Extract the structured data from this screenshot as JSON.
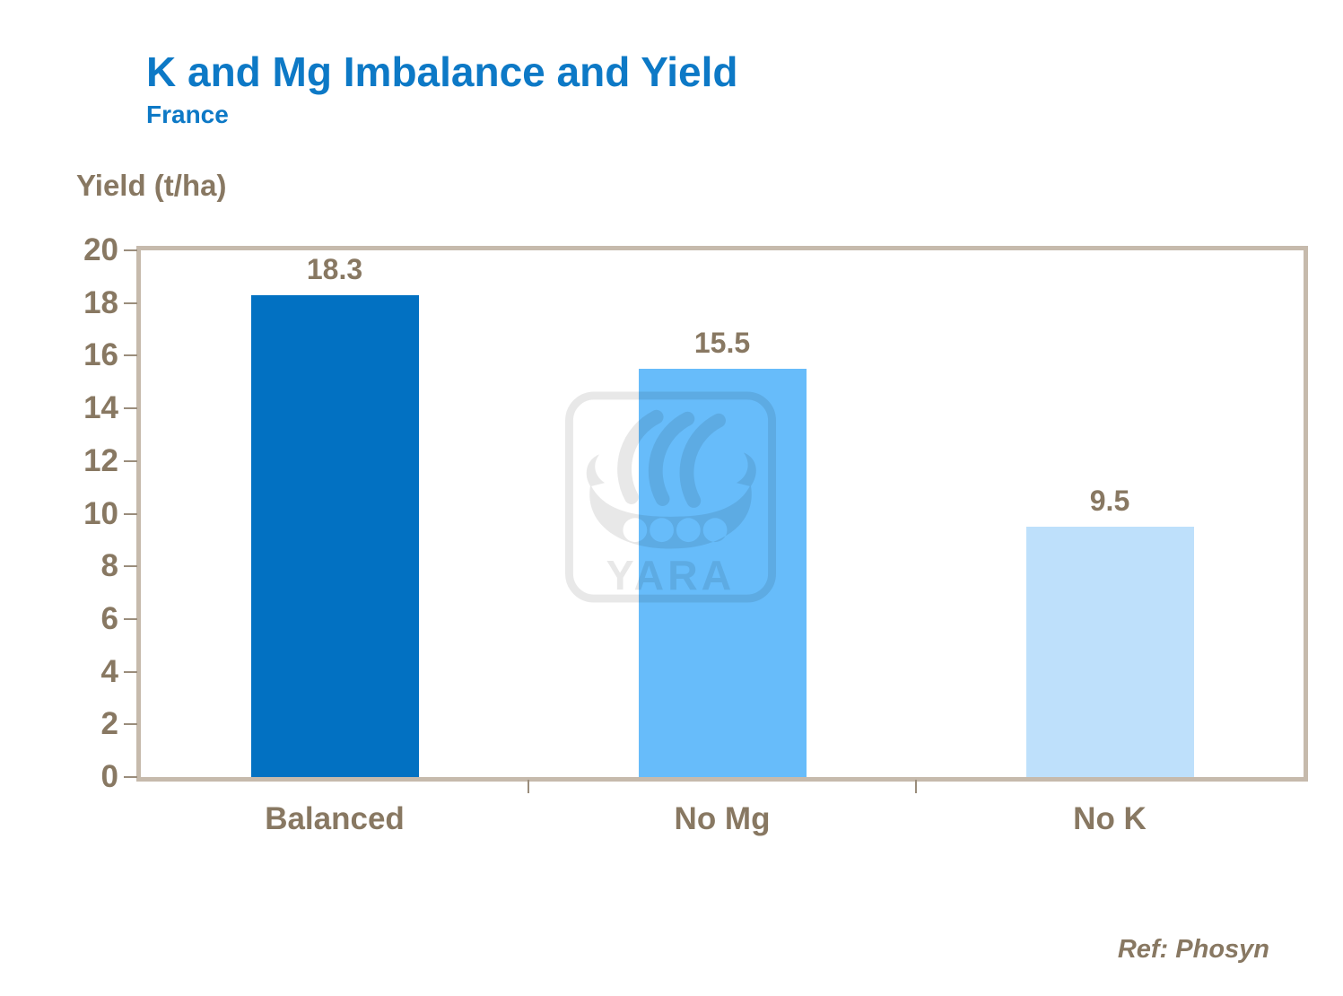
{
  "slide": {
    "title": "K and Mg Imbalance and Yield",
    "subtitle": "France",
    "ref_note": "Ref: Phosyn",
    "watermark_text": "YARA"
  },
  "colors": {
    "title_blue": "#0d79c6",
    "text_brown": "#887862",
    "plot_border": "#c6baac",
    "tick_color": "#9a8d7c",
    "bar_balanced": "#0271c2",
    "bar_no_mg": "#67bcfa",
    "bar_no_k": "#bee0fb"
  },
  "chart_data": {
    "type": "bar",
    "title": "K and Mg Imbalance and Yield",
    "subtitle": "France",
    "categories": [
      "Balanced",
      "No Mg",
      "No K"
    ],
    "values": [
      18.3,
      15.5,
      9.5
    ],
    "data_labels": [
      "18.3",
      "15.5",
      "9.5"
    ],
    "bar_colors": [
      "#0271c2",
      "#67bcfa",
      "#bee0fb"
    ],
    "xlabel": "",
    "ylabel": "Yield (t/ha)",
    "ylim": [
      0,
      20
    ],
    "ytick_step": 2,
    "grid": false,
    "legend": false,
    "annotations": [
      "Ref: Phosyn"
    ]
  }
}
